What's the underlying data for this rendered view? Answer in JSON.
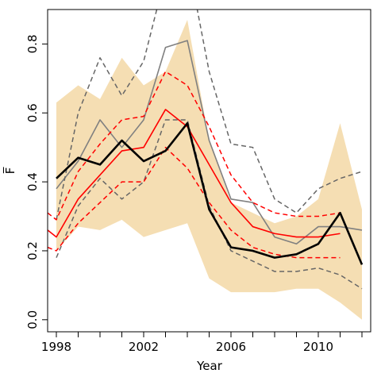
{
  "chart_data": {
    "type": "line",
    "xlabel": "Year",
    "ylabel": "F̅",
    "xlim": [
      1997.6,
      2012.4
    ],
    "ylim": [
      -0.035,
      0.9
    ],
    "xticks": [
      1998,
      2002,
      2006,
      2010
    ],
    "yticks": [
      0.0,
      0.2,
      0.4,
      0.6,
      0.8
    ],
    "grid": false,
    "legend": "none",
    "colors": {
      "band": "#f5deb3",
      "black": "#000000",
      "red": "#ff0000",
      "gray": "#808080",
      "dark_dashed": "#666666"
    },
    "band": {
      "x": [
        1998,
        1999,
        2000,
        2001,
        2002,
        2003,
        2004,
        2005,
        2006,
        2007,
        2008,
        2009,
        2010,
        2011,
        2012
      ],
      "upper": [
        0.63,
        0.68,
        0.64,
        0.76,
        0.68,
        0.72,
        0.87,
        0.52,
        0.34,
        0.31,
        0.28,
        0.3,
        0.35,
        0.57,
        0.32
      ],
      "lower": [
        0.2,
        0.27,
        0.26,
        0.29,
        0.24,
        0.26,
        0.28,
        0.12,
        0.08,
        0.08,
        0.08,
        0.09,
        0.09,
        0.05,
        0.0
      ]
    },
    "series": [
      {
        "style": "gray-solid",
        "x": [
          1998,
          1999,
          2000,
          2001,
          2002,
          2003,
          2004,
          2005,
          2006,
          2007,
          2008,
          2009,
          2010,
          2011,
          2012
        ],
        "values": [
          0.38,
          0.46,
          0.58,
          0.5,
          0.58,
          0.79,
          0.81,
          0.52,
          0.35,
          0.34,
          0.24,
          0.22,
          0.27,
          0.27,
          0.26
        ]
      },
      {
        "style": "gray-dashed",
        "x": [
          1998,
          1999,
          2000,
          2001,
          2002,
          2003,
          2004,
          2005,
          2006,
          2007,
          2008,
          2009,
          2010,
          2011,
          2012
        ],
        "values": [
          0.29,
          0.6,
          0.76,
          0.65,
          0.75,
          1.0,
          1.05,
          0.72,
          0.51,
          0.5,
          0.35,
          0.31,
          0.38,
          0.41,
          0.43
        ]
      },
      {
        "style": "gray-dashed",
        "x": [
          1998,
          1999,
          2000,
          2001,
          2002,
          2003,
          2004,
          2005,
          2006,
          2007,
          2008,
          2009,
          2010,
          2011,
          2012
        ],
        "values": [
          0.18,
          0.33,
          0.41,
          0.35,
          0.4,
          0.58,
          0.58,
          0.33,
          0.2,
          0.17,
          0.14,
          0.14,
          0.15,
          0.13,
          0.09
        ]
      },
      {
        "style": "red-solid",
        "x": [
          1997.6,
          1998,
          1999,
          2000,
          2001,
          2002,
          2003,
          2004,
          2005,
          2006,
          2007,
          2008,
          2009,
          2010,
          2011
        ],
        "values": [
          0.26,
          0.24,
          0.35,
          0.42,
          0.49,
          0.5,
          0.61,
          0.56,
          0.45,
          0.34,
          0.27,
          0.25,
          0.24,
          0.24,
          0.25
        ]
      },
      {
        "style": "red-dashed",
        "x": [
          1997.6,
          1998,
          1999,
          2000,
          2001,
          2002,
          2003,
          2004,
          2005,
          2006,
          2007,
          2008,
          2009,
          2010,
          2011
        ],
        "values": [
          0.31,
          0.29,
          0.43,
          0.51,
          0.58,
          0.59,
          0.72,
          0.68,
          0.56,
          0.42,
          0.34,
          0.31,
          0.3,
          0.3,
          0.31
        ]
      },
      {
        "style": "red-dashed",
        "x": [
          1997.6,
          1998,
          1999,
          2000,
          2001,
          2002,
          2003,
          2004,
          2005,
          2006,
          2007,
          2008,
          2009,
          2010,
          2011
        ],
        "values": [
          0.21,
          0.2,
          0.28,
          0.34,
          0.4,
          0.4,
          0.5,
          0.44,
          0.34,
          0.26,
          0.21,
          0.19,
          0.18,
          0.18,
          0.18
        ]
      },
      {
        "style": "black-solid",
        "x": [
          1998,
          1999,
          2000,
          2001,
          2002,
          2003,
          2004,
          2005,
          2006,
          2007,
          2008,
          2009,
          2010,
          2011,
          2012
        ],
        "values": [
          0.41,
          0.47,
          0.45,
          0.52,
          0.46,
          0.49,
          0.57,
          0.32,
          0.21,
          0.2,
          0.18,
          0.19,
          0.22,
          0.31,
          0.16
        ]
      }
    ]
  }
}
